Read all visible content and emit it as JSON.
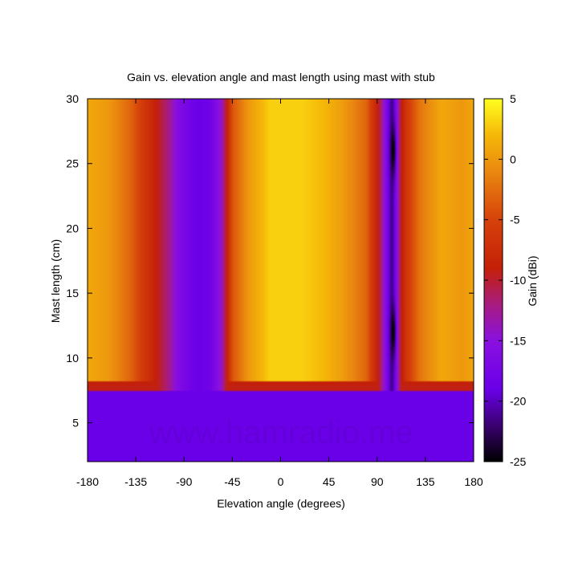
{
  "chart_data": {
    "type": "heatmap",
    "title": "Gain vs. elevation angle and mast length using mast with stub",
    "xlabel": "Elevation angle (degrees)",
    "ylabel": "Mast length (cm)",
    "colorbar_label": "Gain (dBi)",
    "watermark": "www.hamradio.me",
    "xlim": [
      -180,
      180
    ],
    "ylim": [
      2,
      30
    ],
    "zlim": [
      -25,
      5
    ],
    "x_ticks": [
      -180,
      -135,
      -90,
      -45,
      0,
      45,
      90,
      135,
      180
    ],
    "y_ticks": [
      5,
      10,
      15,
      20,
      25,
      30
    ],
    "colorbar_ticks": [
      5,
      0,
      -5,
      -10,
      -15,
      -20,
      -25
    ],
    "mast_length_threshold": 7.8,
    "gain_below_threshold": -19,
    "gain_profile_by_elevation": {
      "elevation": [
        -180,
        -160,
        -140,
        -120,
        -105,
        -95,
        -85,
        -75,
        -65,
        -55,
        -45,
        -30,
        -10,
        0,
        20,
        40,
        60,
        80,
        92,
        98,
        104,
        108,
        112,
        118,
        130,
        150,
        170,
        180
      ],
      "gain": [
        1,
        0,
        -3,
        -8,
        -12,
        -16,
        -18,
        -19,
        -18,
        -14,
        -4,
        0,
        3,
        3,
        3,
        2,
        0,
        -3,
        -10,
        -16,
        -22,
        -16,
        -10,
        -6,
        -2,
        1,
        0,
        1
      ]
    },
    "null_dip": {
      "elevation": 105,
      "depth": -25,
      "mast_lengths": [
        12,
        26
      ]
    },
    "colormap": [
      {
        "value": -25,
        "color": "#000000"
      },
      {
        "value": -22,
        "color": "#3a0070"
      },
      {
        "value": -19,
        "color": "#6a00e8"
      },
      {
        "value": -15,
        "color": "#8a10e0"
      },
      {
        "value": -12,
        "color": "#a81c80"
      },
      {
        "value": -9,
        "color": "#c42008"
      },
      {
        "value": -5,
        "color": "#d6420a"
      },
      {
        "value": -1,
        "color": "#ea8810"
      },
      {
        "value": 2,
        "color": "#f5b808"
      },
      {
        "value": 5,
        "color": "#ffff20"
      }
    ]
  }
}
